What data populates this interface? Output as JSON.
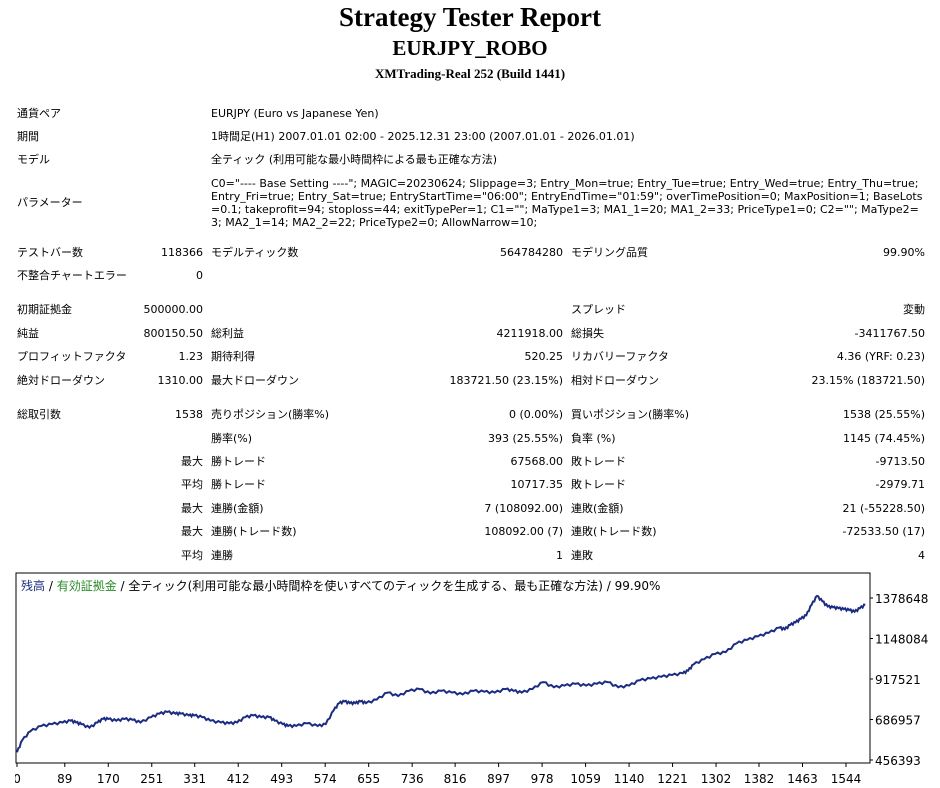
{
  "header": {
    "title": "Strategy Tester Report",
    "symbol": "EURJPY_ROBO",
    "build": "XMTrading-Real 252 (Build 1441)"
  },
  "info": [
    {
      "label": "通貨ペア",
      "value": "EURJPY (Euro vs Japanese Yen)"
    },
    {
      "label": "期間",
      "value": "1時間足(H1) 2007.01.01 02:00 - 2025.12.31 23:00 (2007.01.01 - 2026.01.01)"
    },
    {
      "label": "モデル",
      "value": "全ティック (利用可能な最小時間枠による最も正確な方法)"
    }
  ],
  "parameters": {
    "label": "パラメーター",
    "value": "C0=\"---- Base Setting ----\"; MAGIC=20230624; Slippage=3; Entry_Mon=true; Entry_Tue=true; Entry_Wed=true; Entry_Thu=true; Entry_Fri=true; Entry_Sat=true; EntryStartTime=\"06:00\"; EntryEndTime=\"01:59\"; overTimePosition=0; MaxPosition=1; BaseLots=0.1; takeprofit=94; stoploss=44; exitTypePer=1; C1=\"\"; MaType1=3; MA1_1=20; MA1_2=33; PriceType1=0; C2=\"\"; MaType2=3; MA2_1=14; MA2_2=22; PriceType2=0; AllowNarrow=10;"
  },
  "stats": {
    "bars_label": "テストバー数",
    "bars_value": "118366",
    "ticks_label": "モデルティック数",
    "ticks_value": "564784280",
    "quality_label": "モデリング品質",
    "quality_value": "99.90%",
    "mismatch_label": "不整合チャートエラー",
    "mismatch_value": "0",
    "deposit_label": "初期証拠金",
    "deposit_value": "500000.00",
    "spread_label": "スプレッド",
    "spread_value": "変動",
    "net_label": "純益",
    "net_value": "800150.50",
    "gross_profit_label": "総利益",
    "gross_profit_value": "4211918.00",
    "gross_loss_label": "総損失",
    "gross_loss_value": "-3411767.50",
    "pf_label": "プロフィットファクタ",
    "pf_value": "1.23",
    "payoff_label": "期待利得",
    "payoff_value": "520.25",
    "recovery_label": "リカバリーファクタ",
    "recovery_value": "4.36 (YRF: 0.23)",
    "abs_dd_label": "絶対ドローダウン",
    "abs_dd_value": "1310.00",
    "max_dd_label": "最大ドローダウン",
    "max_dd_value": "183721.50 (23.15%)",
    "rel_dd_label": "相対ドローダウン",
    "rel_dd_value": "23.15% (183721.50)",
    "trades_label": "総取引数",
    "trades_value": "1538",
    "short_label": "売りポジション(勝率%)",
    "short_value": "0 (0.00%)",
    "long_label": "買いポジション(勝率%)",
    "long_value": "1538 (25.55%)",
    "winrate_label": "勝率(%)",
    "winrate_value": "393 (25.55%)",
    "lossrate_label": "負率 (%)",
    "lossrate_value": "1145 (74.45%)",
    "largest": "最大",
    "average": "平均",
    "lp_label": "勝トレード",
    "lp_value": "67568.00",
    "ll_label": "敗トレード",
    "ll_value": "-9713.50",
    "ap_label": "勝トレード",
    "ap_value": "10717.35",
    "al_label": "敗トレード",
    "al_value": "-2979.71",
    "mcw_label": "連勝(金額)",
    "mcw_value": "7 (108092.00)",
    "mcl_label": "連敗(金額)",
    "mcl_value": "21 (-55228.50)",
    "mcp_label": "連勝(トレード数)",
    "mcp_value": "108092.00 (7)",
    "mcloss_label": "連敗(トレード数)",
    "mcloss_value": "-72533.50 (17)",
    "acw_label": "連勝",
    "acw_value": "1",
    "acl_label": "連敗",
    "acl_value": "4"
  },
  "chart_legend": {
    "balance": "残高",
    "sep1": " / ",
    "equity": "有効証拠金",
    "sep2": " / ",
    "model": "全ティック(利用可能な最小時間枠を使いすべてのティックを生成する、最も正確な方法) / 99.90%"
  },
  "colors": {
    "balance": "#1c2c80",
    "equity": "#2a8a2a",
    "legend_text": "#1c2c80"
  },
  "chart_data": {
    "type": "line",
    "xlabel": "",
    "ylabel": "",
    "xlim": [
      0,
      1585
    ],
    "ylim": [
      456393,
      1378648
    ],
    "x_ticks": [
      "0",
      "89",
      "170",
      "251",
      "331",
      "412",
      "493",
      "574",
      "655",
      "736",
      "816",
      "897",
      "978",
      "1059",
      "1140",
      "1221",
      "1302",
      "1382",
      "1463",
      "1544"
    ],
    "y_ticks": [
      "1378648",
      "1148084",
      "917521",
      "686957",
      "456393"
    ],
    "series": [
      {
        "x": [
          0,
          10,
          25,
          45,
          65,
          85,
          100,
          110,
          120,
          135,
          150,
          160,
          170,
          185,
          200,
          215,
          230,
          250,
          265,
          280,
          295,
          305,
          320,
          330,
          345,
          360,
          380,
          395,
          410,
          425,
          440,
          455,
          470,
          480,
          495,
          505,
          520,
          540,
          560,
          575,
          590,
          600,
          610,
          620,
          630,
          640,
          650,
          670,
          690,
          710,
          730,
          750,
          770,
          790,
          810,
          830,
          850,
          870,
          890,
          910,
          925,
          940,
          960,
          980,
          1000,
          1020,
          1040,
          1060,
          1080,
          1100,
          1120,
          1140,
          1160,
          1180,
          1200,
          1220,
          1240,
          1250,
          1260,
          1280,
          1300,
          1320,
          1340,
          1360,
          1380,
          1400,
          1420,
          1430,
          1440,
          1450,
          1460,
          1470,
          1480,
          1490,
          1500,
          1510,
          1520,
          1530,
          1540,
          1550,
          1560,
          1570,
          1580
        ],
        "y": [
          500000,
          570000,
          620000,
          650000,
          660000,
          670000,
          680000,
          670000,
          660000,
          640000,
          670000,
          690000,
          690000,
          680000,
          690000,
          685000,
          670000,
          700000,
          720000,
          730000,
          720000,
          720000,
          710000,
          710000,
          700000,
          680000,
          670000,
          665000,
          670000,
          700000,
          710000,
          700000,
          700000,
          680000,
          660000,
          650000,
          650000,
          665000,
          650000,
          660000,
          740000,
          780000,
          790000,
          780000,
          780000,
          790000,
          780000,
          800000,
          840000,
          820000,
          850000,
          860000,
          835000,
          850000,
          840000,
          830000,
          850000,
          845000,
          840000,
          860000,
          850000,
          840000,
          860000,
          900000,
          870000,
          880000,
          890000,
          880000,
          890000,
          900000,
          870000,
          880000,
          910000,
          920000,
          930000,
          940000,
          950000,
          965000,
          1000000,
          1030000,
          1060000,
          1070000,
          1120000,
          1140000,
          1160000,
          1180000,
          1210000,
          1200000,
          1225000,
          1240000,
          1260000,
          1280000,
          1340000,
          1390000,
          1360000,
          1330000,
          1325000,
          1320000,
          1315000,
          1310000,
          1300000,
          1320000,
          1340000
        ]
      }
    ]
  }
}
